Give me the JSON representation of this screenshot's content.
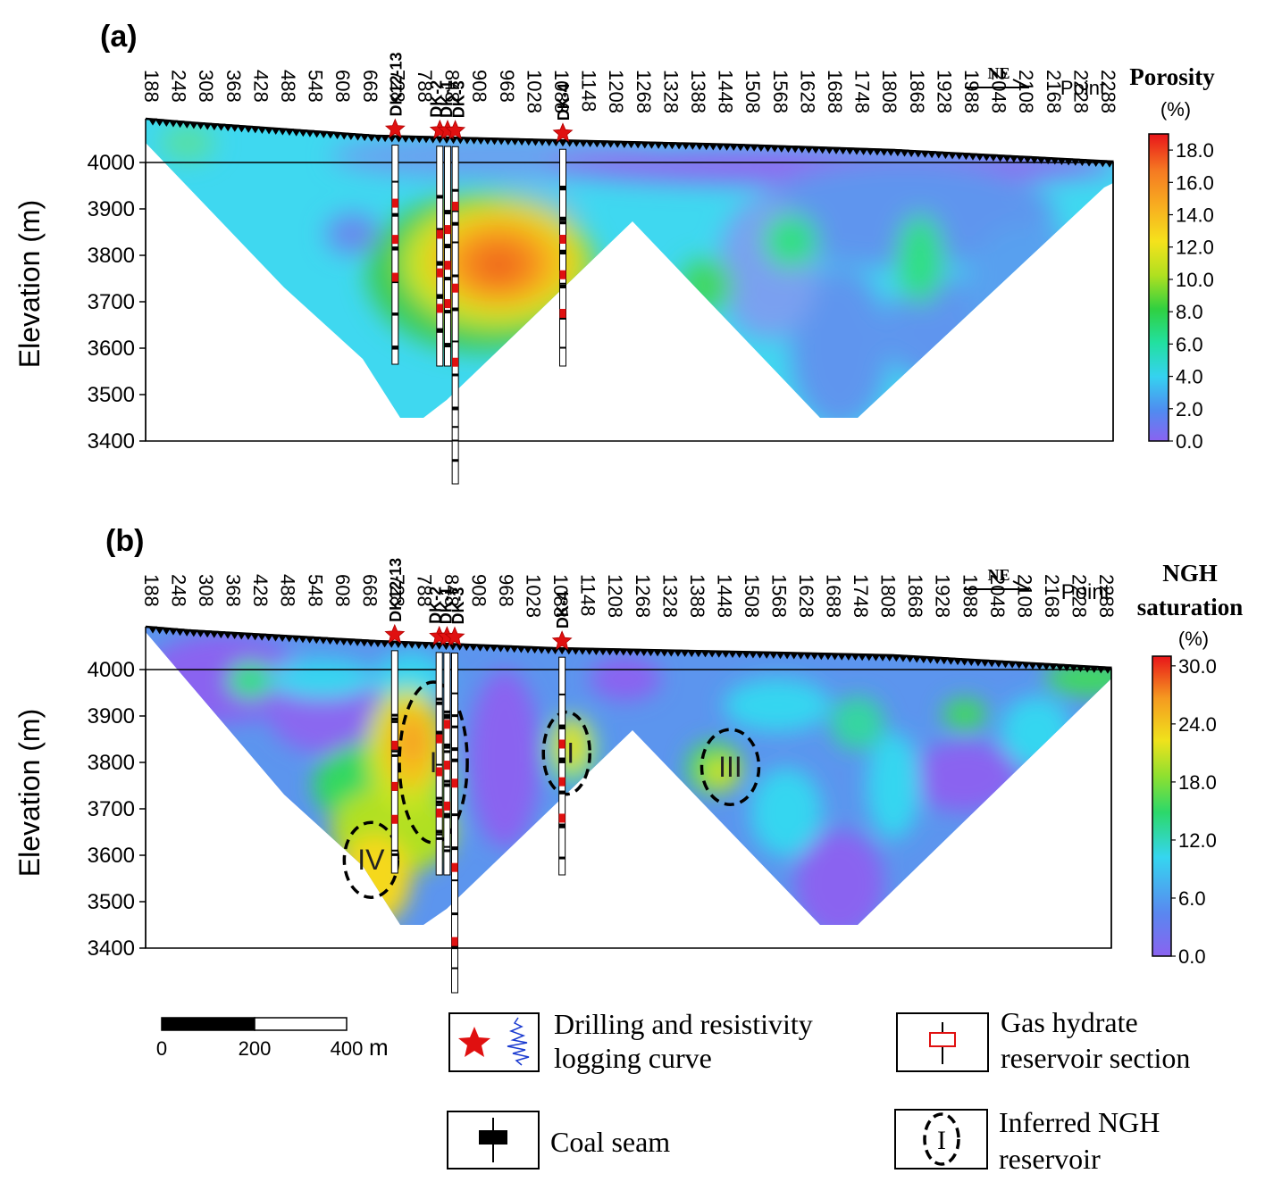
{
  "chart_data": [
    {
      "type": "heatmap",
      "panel_label": "(a)",
      "title": "",
      "xlabel": "Point",
      "ylabel": "Elevation (m)",
      "x_ticks": [
        "188",
        "248",
        "308",
        "368",
        "428",
        "488",
        "548",
        "608",
        "668",
        "728",
        "788",
        "848",
        "908",
        "968",
        "1028",
        "1088",
        "1148",
        "1208",
        "1268",
        "1328",
        "1388",
        "1448",
        "1508",
        "1568",
        "1628",
        "1688",
        "1748",
        "1808",
        "1868",
        "1928",
        "1988",
        "2048",
        "2108",
        "2168",
        "2228",
        "2288"
      ],
      "y_ticks": [
        "4000",
        "3900",
        "3800",
        "3700",
        "3600",
        "3500",
        "3400"
      ],
      "ylim": [
        3400,
        4090
      ],
      "direction_label": "NE",
      "colorbar": {
        "title_lines": [
          "Porosity",
          "(%)"
        ],
        "ticks": [
          "18.0",
          "16.0",
          "14.0",
          "12.0",
          "10.0",
          "8.0",
          "6.0",
          "4.0",
          "2.0",
          "0.0"
        ],
        "range": [
          0,
          19
        ]
      },
      "wells": [
        {
          "name": "DK12-13",
          "x": 720
        },
        {
          "name": "DK-2",
          "x": 818
        },
        {
          "name": "DK-1",
          "x": 835
        },
        {
          "name": "DK-3",
          "x": 852
        },
        {
          "name": "DK-4",
          "x": 1088
        }
      ],
      "annotations": [],
      "notes": "Porosity contours; high porosity (~12–15%) zone between DK-3 and DK-4 at ~3780 m"
    },
    {
      "type": "heatmap",
      "panel_label": "(b)",
      "title": "",
      "xlabel": "Point",
      "ylabel": "Elevation (m)",
      "x_ticks": [
        "188",
        "248",
        "308",
        "368",
        "428",
        "488",
        "548",
        "608",
        "668",
        "728",
        "788",
        "848",
        "908",
        "968",
        "1028",
        "1088",
        "1148",
        "1208",
        "1268",
        "1328",
        "1388",
        "1448",
        "1508",
        "1568",
        "1628",
        "1688",
        "1748",
        "1808",
        "1868",
        "1928",
        "1988",
        "2048",
        "2108",
        "2168",
        "2228",
        "2288"
      ],
      "y_ticks": [
        "4000",
        "3900",
        "3800",
        "3700",
        "3600",
        "3500",
        "3400"
      ],
      "ylim": [
        3400,
        4090
      ],
      "direction_label": "NE",
      "colorbar": {
        "title_lines": [
          "NGH",
          "saturation",
          "(%)"
        ],
        "ticks": [
          "30.0",
          "24.0",
          "18.0",
          "12.0",
          "6.0",
          "0.0"
        ],
        "range": [
          0,
          31
        ]
      },
      "wells": [
        {
          "name": "DK12-13",
          "x": 720
        },
        {
          "name": "DK-2",
          "x": 818
        },
        {
          "name": "DK-1",
          "x": 835
        },
        {
          "name": "DK-3",
          "x": 852
        },
        {
          "name": "DK-4",
          "x": 1088
        }
      ],
      "annotations": [
        {
          "label": "I",
          "x": 805,
          "y": 3800
        },
        {
          "label": "II",
          "x": 1098,
          "y": 3820
        },
        {
          "label": "III",
          "x": 1458,
          "y": 3790
        },
        {
          "label": "IV",
          "x": 668,
          "y": 3590
        }
      ],
      "notes": "NGH saturation contours with inferred reservoirs I–IV"
    }
  ],
  "scale_bar": {
    "ticks": [
      "0",
      "200",
      "400"
    ],
    "unit": "m"
  },
  "legend": [
    {
      "icon": "star-log-icon",
      "lines": [
        "Drilling and resistivity",
        "logging curve"
      ]
    },
    {
      "icon": "reservoir-box-icon",
      "lines": [
        "Gas hydrate",
        "reservoir section"
      ]
    },
    {
      "icon": "coal-seam-icon",
      "lines": [
        "Coal seam"
      ]
    },
    {
      "icon": "ellipse-icon",
      "lines": [
        "Inferred NGH",
        "reservoir"
      ],
      "symbol": "I"
    }
  ],
  "colors": {
    "star": "#e01010",
    "reservoir": "#e01010",
    "coal": "#000000"
  }
}
